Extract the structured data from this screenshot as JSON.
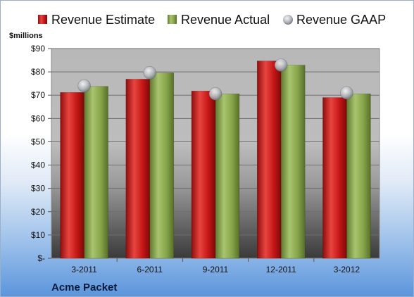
{
  "chart_data": {
    "type": "bar",
    "company": "Acme Packet",
    "unit_label": "$millions",
    "categories": [
      "3-2011",
      "6-2011",
      "9-2011",
      "12-2011",
      "3-2012"
    ],
    "series": [
      {
        "name": "Revenue Estimate",
        "kind": "bar",
        "color": "#cc1f1f",
        "values": [
          71.2,
          76.9,
          71.8,
          84.7,
          69.0
        ]
      },
      {
        "name": "Revenue Actual",
        "kind": "bar",
        "color": "#8fae52",
        "values": [
          73.8,
          79.6,
          70.6,
          82.9,
          70.6
        ]
      },
      {
        "name": "Revenue GAAP",
        "kind": "marker",
        "color": "#b9bcc2",
        "values": [
          74.0,
          79.6,
          70.6,
          82.9,
          71.0
        ]
      }
    ],
    "ylim": [
      0,
      90
    ],
    "yticks": [
      0,
      10,
      20,
      30,
      40,
      50,
      60,
      70,
      80,
      90
    ],
    "ytick_labels": [
      "$-",
      "$10",
      "$20",
      "$30",
      "$40",
      "$50",
      "$60",
      "$70",
      "$80",
      "$90"
    ],
    "grid": true,
    "legend_position": "top"
  }
}
